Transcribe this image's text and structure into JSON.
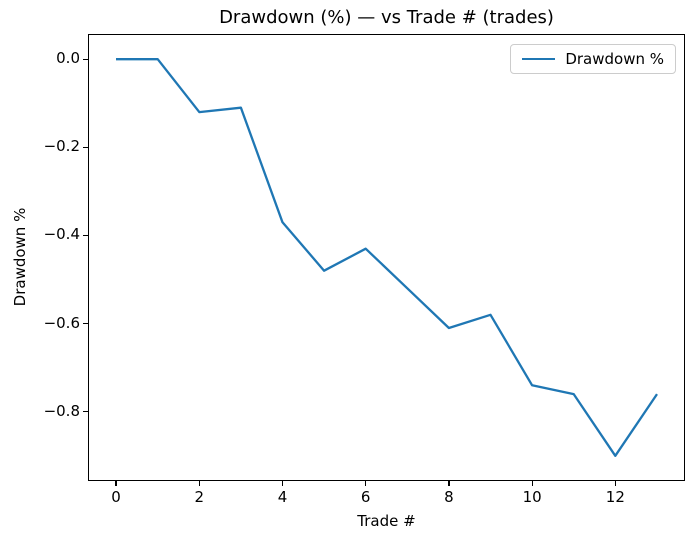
{
  "window": {
    "background_color": "#ffffff",
    "axis_color": "#000000",
    "legend_border_color": "#cccccc"
  },
  "chart_data": {
    "type": "line",
    "title": "Drawdown (%) — vs Trade # (trades)",
    "xlabel": "Trade #",
    "ylabel": "Drawdown %",
    "x": [
      0,
      1,
      2,
      3,
      4,
      5,
      6,
      7,
      8,
      9,
      10,
      11,
      12,
      13
    ],
    "series": [
      {
        "name": "Drawdown %",
        "color": "#1f77b4",
        "values": [
          0.0,
          0.0,
          -0.12,
          -0.11,
          -0.37,
          -0.48,
          -0.43,
          -0.52,
          -0.61,
          -0.58,
          -0.74,
          -0.76,
          -0.9,
          -0.76
        ]
      }
    ],
    "xlim": [
      -0.65,
      13.65
    ],
    "ylim": [
      -0.955,
      0.055
    ],
    "xticks": [
      {
        "v": 0,
        "label": "0"
      },
      {
        "v": 2,
        "label": "2"
      },
      {
        "v": 4,
        "label": "4"
      },
      {
        "v": 6,
        "label": "6"
      },
      {
        "v": 8,
        "label": "8"
      },
      {
        "v": 10,
        "label": "10"
      },
      {
        "v": 12,
        "label": "12"
      }
    ],
    "yticks": [
      {
        "v": 0.0,
        "label": "0.0"
      },
      {
        "v": -0.2,
        "label": "−0.2"
      },
      {
        "v": -0.4,
        "label": "−0.4"
      },
      {
        "v": -0.6,
        "label": "−0.6"
      },
      {
        "v": -0.8,
        "label": "−0.8"
      }
    ],
    "grid": false,
    "legend": {
      "position": "upper right"
    }
  }
}
